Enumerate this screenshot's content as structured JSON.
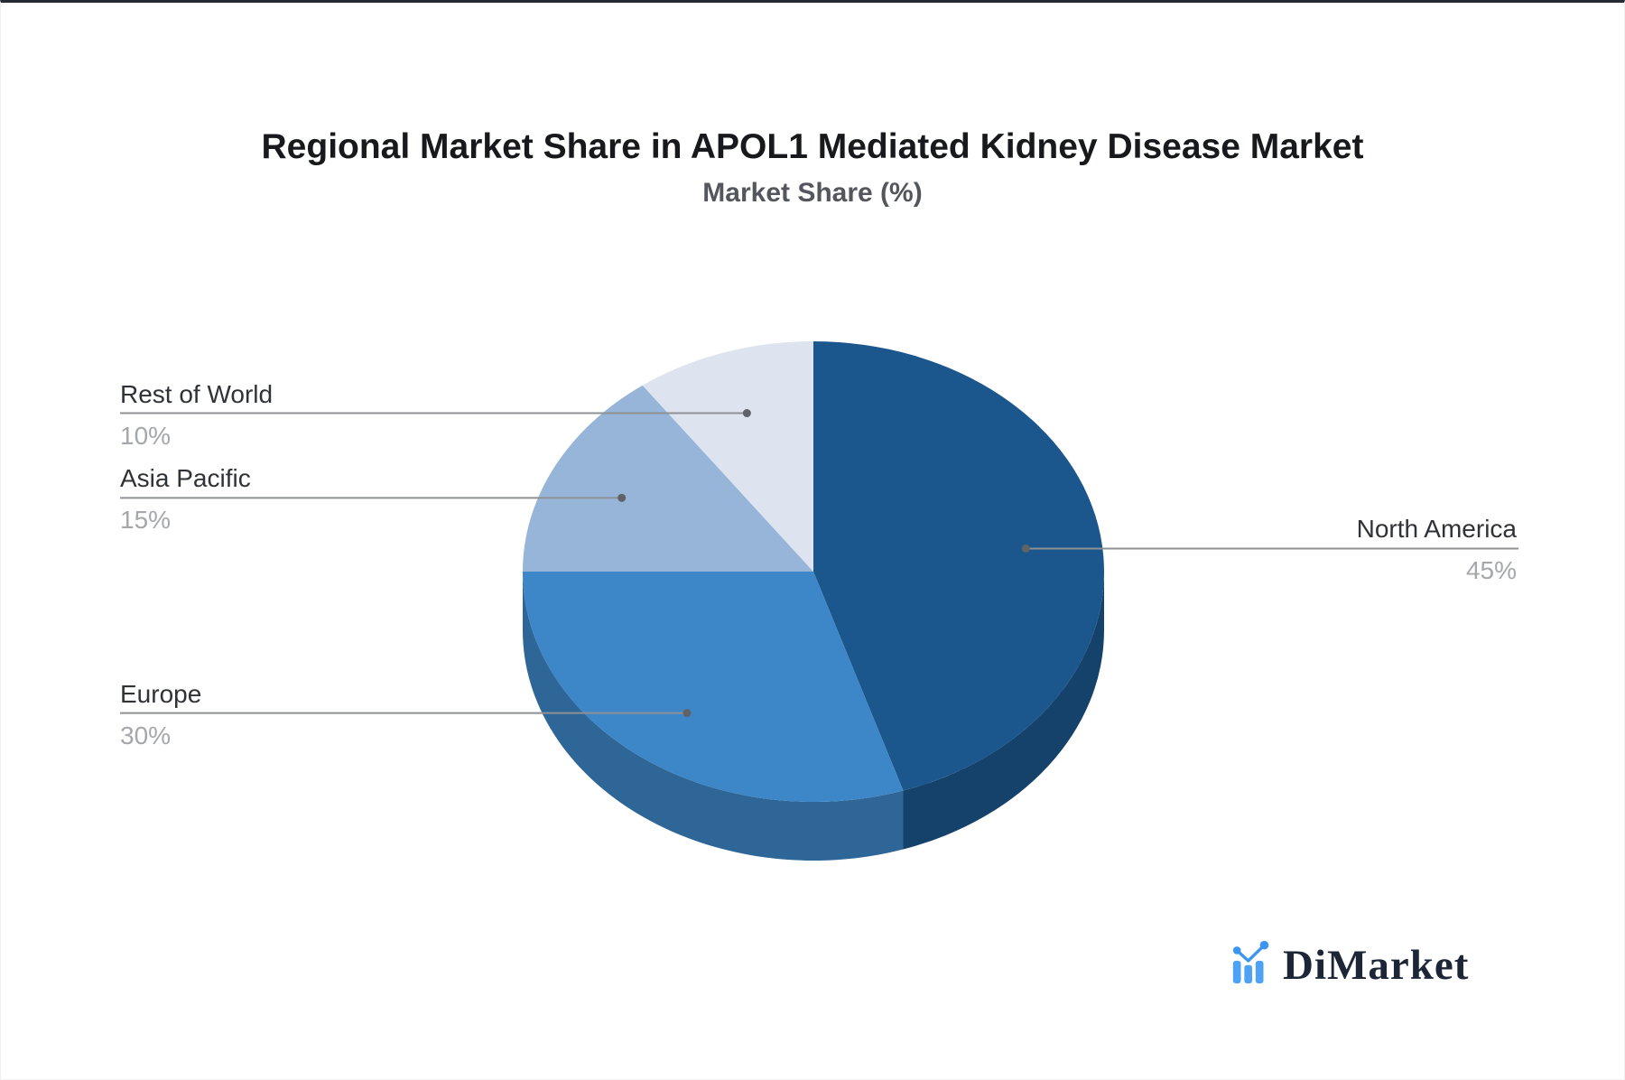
{
  "title": "Regional Market Share in APOL1 Mediated Kidney Disease Market",
  "subtitle": "Market Share (%)",
  "logo_text": "DiMarket",
  "chart_data": {
    "type": "pie",
    "title": "Regional Market Share in APOL1 Mediated Kidney Disease Market",
    "subtitle": "Market Share (%)",
    "unit": "%",
    "style": "3d",
    "start_angle_deg": 0,
    "direction": "clockwise",
    "legend": "none",
    "labels": "callout leader lines with category name and percent",
    "leader_line_color": "#8f9194",
    "leader_dot_color": "#5f6267",
    "slices": [
      {
        "label": "North America",
        "value": 45,
        "pct_label": "45%",
        "color": "#1b578c"
      },
      {
        "label": "Europe",
        "value": 30,
        "pct_label": "30%",
        "color": "#3d86c8"
      },
      {
        "label": "Asia Pacific",
        "value": 15,
        "pct_label": "15%",
        "color": "#96b5d9"
      },
      {
        "label": "Rest of World",
        "value": 10,
        "pct_label": "10%",
        "color": "#dde4ef"
      }
    ]
  }
}
